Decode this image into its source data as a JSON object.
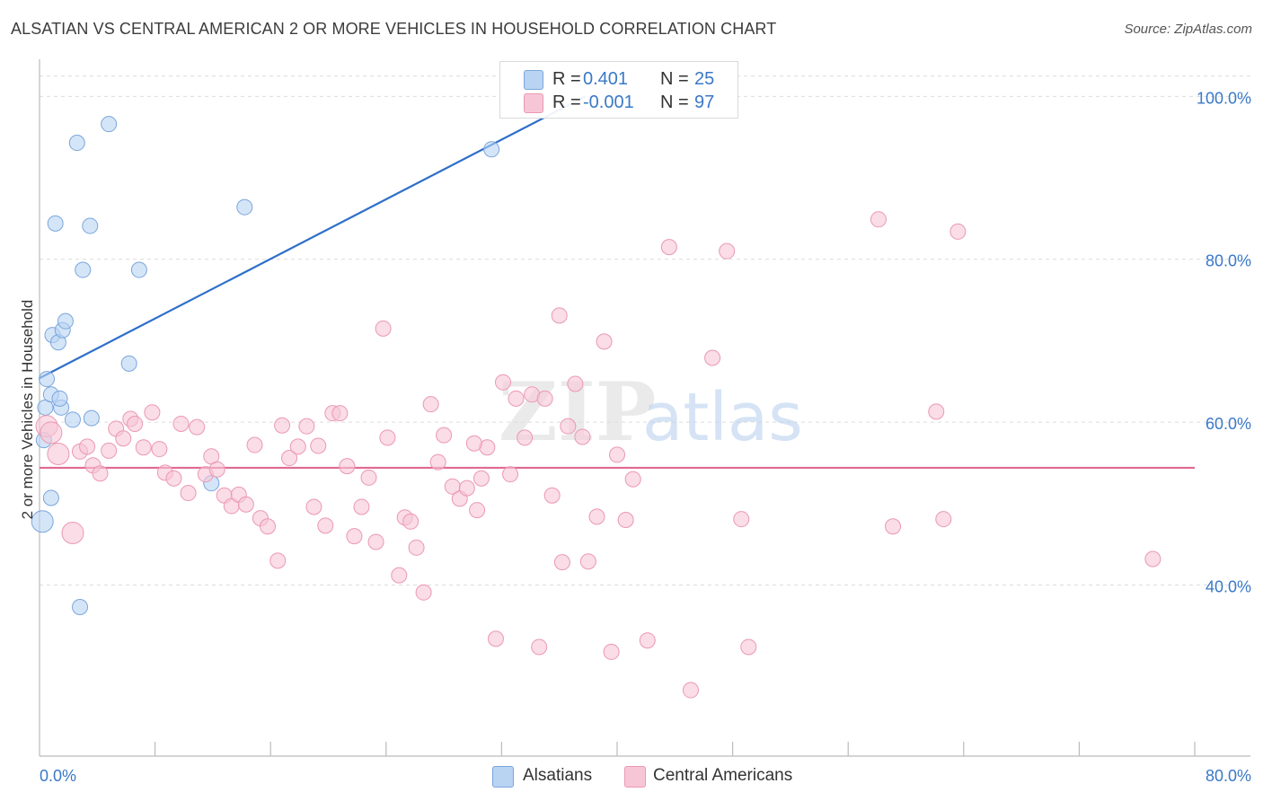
{
  "title": "ALSATIAN VS CENTRAL AMERICAN 2 OR MORE VEHICLES IN HOUSEHOLD CORRELATION CHART",
  "source": "Source: ZipAtlas.com",
  "legend_top": {
    "rows": [
      {
        "r_label": "R =",
        "r_value": "0.401",
        "n_label": "N =",
        "n_value": "25"
      },
      {
        "r_label": "R =",
        "r_value": "-0.001",
        "n_label": "N =",
        "n_value": "97"
      }
    ]
  },
  "legend_bottom": {
    "items": [
      {
        "label": "Alsatians"
      },
      {
        "label": "Central Americans"
      }
    ]
  },
  "colors": {
    "alsatian_fill": "#b9d3f3",
    "alsatian_stroke": "#7aa6dc",
    "alsatian_line": "#2e6fc9",
    "central_fill": "#f7c6d6",
    "central_stroke": "#eb98b3",
    "central_line": "#e06a93",
    "tick_label": "#3a78c8",
    "grid": "#dcdcdc"
  },
  "chart_data": {
    "type": "scatter",
    "title": "ALSATIAN VS CENTRAL AMERICAN 2 OR MORE VEHICLES IN HOUSEHOLD CORRELATION CHART",
    "xlabel": "",
    "ylabel": "2 or more Vehicles in Household",
    "xlim": [
      0,
      80
    ],
    "ylim": [
      19,
      105
    ],
    "x_tick_labels": [
      {
        "value": 0,
        "label": "0.0%"
      },
      {
        "value": 80,
        "label": "80.0%"
      }
    ],
    "y_tick_labels": [
      {
        "value": 100,
        "label": "100.0%"
      },
      {
        "value": 80,
        "label": "80.0%"
      },
      {
        "value": 60,
        "label": "60.0%"
      },
      {
        "value": 40,
        "label": "40.0%"
      }
    ],
    "x_minor_ticks": [
      8,
      16,
      24,
      32,
      40,
      48,
      56,
      64,
      72,
      80
    ],
    "watermark": {
      "part1": "ZIP",
      "part2": "atlas"
    },
    "series": [
      {
        "name": "Alsatians",
        "r": 0.401,
        "n": 25,
        "trend": {
          "x": [
            0,
            37.8
          ],
          "y": [
            65.4,
            100.0
          ]
        },
        "points": [
          [
            0.2,
            47.8,
            2
          ],
          [
            0.3,
            57.8,
            1
          ],
          [
            0.4,
            61.8,
            1
          ],
          [
            0.5,
            65.3,
            1
          ],
          [
            0.8,
            50.7,
            1
          ],
          [
            0.8,
            63.4,
            1
          ],
          [
            0.9,
            70.7,
            1
          ],
          [
            1.1,
            84.4,
            1
          ],
          [
            1.3,
            69.8,
            1
          ],
          [
            1.5,
            61.8,
            1
          ],
          [
            1.6,
            71.3,
            1
          ],
          [
            1.8,
            72.4,
            1
          ],
          [
            2.3,
            60.3,
            1
          ],
          [
            2.6,
            94.3,
            1
          ],
          [
            2.8,
            37.3,
            1
          ],
          [
            3.0,
            78.7,
            1
          ],
          [
            3.5,
            84.1,
            1
          ],
          [
            3.6,
            60.5,
            1
          ],
          [
            4.8,
            96.6,
            1
          ],
          [
            6.2,
            67.2,
            1
          ],
          [
            6.9,
            78.7,
            1
          ],
          [
            11.9,
            52.5,
            1
          ],
          [
            14.2,
            86.4,
            1
          ],
          [
            31.3,
            93.5,
            1
          ],
          [
            1.4,
            62.9,
            1
          ]
        ]
      },
      {
        "name": "Central Americans",
        "r": -0.001,
        "n": 97,
        "trend": {
          "x": [
            0,
            80
          ],
          "y": [
            54.4,
            54.4
          ]
        },
        "points": [
          [
            0.5,
            59.5,
            2
          ],
          [
            0.8,
            58.7,
            2
          ],
          [
            1.3,
            56.1,
            2
          ],
          [
            2.3,
            46.4,
            2
          ],
          [
            2.8,
            56.4,
            1
          ],
          [
            3.3,
            57.0,
            1
          ],
          [
            3.7,
            54.7,
            1
          ],
          [
            4.2,
            53.7,
            1
          ],
          [
            4.8,
            56.5,
            1
          ],
          [
            5.3,
            59.2,
            1
          ],
          [
            5.8,
            58.0,
            1
          ],
          [
            6.3,
            60.4,
            1
          ],
          [
            6.6,
            59.8,
            1
          ],
          [
            7.2,
            56.9,
            1
          ],
          [
            7.8,
            61.2,
            1
          ],
          [
            8.3,
            56.7,
            1
          ],
          [
            8.7,
            53.8,
            1
          ],
          [
            9.3,
            53.1,
            1
          ],
          [
            9.8,
            59.8,
            1
          ],
          [
            10.3,
            51.3,
            1
          ],
          [
            10.9,
            59.4,
            1
          ],
          [
            11.5,
            53.6,
            1
          ],
          [
            11.9,
            55.8,
            1
          ],
          [
            12.3,
            54.2,
            1
          ],
          [
            12.8,
            51.0,
            1
          ],
          [
            13.3,
            49.7,
            1
          ],
          [
            13.8,
            51.1,
            1
          ],
          [
            14.3,
            49.9,
            1
          ],
          [
            14.9,
            57.2,
            1
          ],
          [
            15.3,
            48.2,
            1
          ],
          [
            15.8,
            47.2,
            1
          ],
          [
            16.5,
            43.0,
            1
          ],
          [
            16.8,
            59.6,
            1
          ],
          [
            17.3,
            55.6,
            1
          ],
          [
            17.9,
            57.0,
            1
          ],
          [
            18.5,
            59.5,
            1
          ],
          [
            19.0,
            49.6,
            1
          ],
          [
            19.3,
            57.1,
            1
          ],
          [
            19.8,
            47.3,
            1
          ],
          [
            20.3,
            61.1,
            1
          ],
          [
            20.8,
            61.1,
            1
          ],
          [
            21.3,
            54.6,
            1
          ],
          [
            21.8,
            46.0,
            1
          ],
          [
            22.3,
            49.6,
            1
          ],
          [
            22.8,
            53.2,
            1
          ],
          [
            23.3,
            45.3,
            1
          ],
          [
            23.8,
            71.5,
            1
          ],
          [
            24.1,
            58.1,
            1
          ],
          [
            24.9,
            41.2,
            1
          ],
          [
            25.3,
            48.3,
            1
          ],
          [
            25.7,
            47.8,
            1
          ],
          [
            26.1,
            44.6,
            1
          ],
          [
            26.6,
            39.1,
            1
          ],
          [
            27.1,
            62.2,
            1
          ],
          [
            27.6,
            55.1,
            1
          ],
          [
            28.0,
            58.4,
            1
          ],
          [
            28.6,
            52.1,
            1
          ],
          [
            29.1,
            50.6,
            1
          ],
          [
            29.6,
            51.9,
            1
          ],
          [
            30.3,
            49.2,
            1
          ],
          [
            30.6,
            53.1,
            1
          ],
          [
            31.0,
            56.9,
            1
          ],
          [
            31.6,
            33.4,
            1
          ],
          [
            32.1,
            64.9,
            1
          ],
          [
            32.6,
            53.6,
            1
          ],
          [
            33.0,
            62.9,
            1
          ],
          [
            33.6,
            58.1,
            1
          ],
          [
            34.1,
            63.4,
            1
          ],
          [
            34.6,
            32.4,
            1
          ],
          [
            35.0,
            62.9,
            1
          ],
          [
            35.5,
            51.0,
            1
          ],
          [
            36.0,
            73.1,
            1
          ],
          [
            36.2,
            42.8,
            1
          ],
          [
            36.6,
            59.5,
            1
          ],
          [
            37.1,
            64.7,
            1
          ],
          [
            37.6,
            58.2,
            1
          ],
          [
            38.0,
            42.9,
            1
          ],
          [
            38.6,
            48.4,
            1
          ],
          [
            39.1,
            69.9,
            1
          ],
          [
            39.6,
            31.8,
            1
          ],
          [
            40.0,
            56.0,
            1
          ],
          [
            40.6,
            48.0,
            1
          ],
          [
            41.1,
            53.0,
            1
          ],
          [
            42.1,
            33.2,
            1
          ],
          [
            43.6,
            81.5,
            1
          ],
          [
            45.1,
            27.1,
            1
          ],
          [
            46.6,
            67.9,
            1
          ],
          [
            47.6,
            81.0,
            1
          ],
          [
            48.6,
            48.1,
            1
          ],
          [
            49.1,
            32.4,
            1
          ],
          [
            58.1,
            84.9,
            1
          ],
          [
            59.1,
            47.2,
            1
          ],
          [
            62.1,
            61.3,
            1
          ],
          [
            62.6,
            48.1,
            1
          ],
          [
            63.6,
            83.4,
            1
          ],
          [
            77.1,
            43.2,
            1
          ],
          [
            30.1,
            57.4,
            1
          ]
        ]
      }
    ]
  }
}
